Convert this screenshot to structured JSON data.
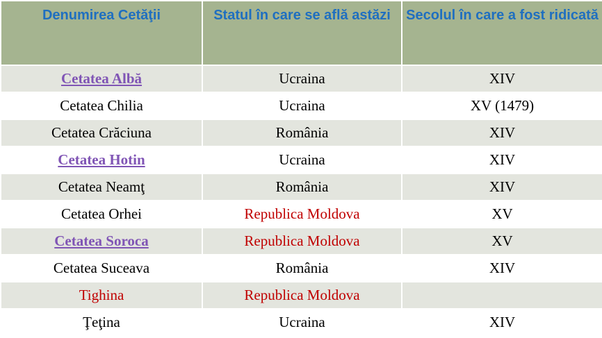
{
  "table": {
    "header": [
      "Denumirea Cetăţii",
      "Statul în care se află astăzi",
      "Secolul în care a fost ridicată"
    ],
    "rows": [
      {
        "cells": [
          {
            "text": "Cetatea Albă",
            "style": "link"
          },
          {
            "text": "Ucraina"
          },
          {
            "text": "XIV"
          }
        ]
      },
      {
        "cells": [
          {
            "text": "Cetatea Chilia"
          },
          {
            "text": "Ucraina"
          },
          {
            "text": "XV (1479)"
          }
        ]
      },
      {
        "cells": [
          {
            "text": "Cetatea Crăciuna"
          },
          {
            "text": "România"
          },
          {
            "text": "XIV"
          }
        ]
      },
      {
        "cells": [
          {
            "text": "Cetatea Hotin",
            "style": "link"
          },
          {
            "text": "Ucraina"
          },
          {
            "text": "XIV"
          }
        ]
      },
      {
        "cells": [
          {
            "text": "Cetatea Neamţ"
          },
          {
            "text": "România"
          },
          {
            "text": "XIV"
          }
        ]
      },
      {
        "cells": [
          {
            "text": "Cetatea Orhei"
          },
          {
            "text": "Republica Moldova",
            "style": "red"
          },
          {
            "text": "XV"
          }
        ]
      },
      {
        "cells": [
          {
            "text": "Cetatea Soroca",
            "style": "link"
          },
          {
            "text": "Republica Moldova",
            "style": "red"
          },
          {
            "text": "XV"
          }
        ]
      },
      {
        "cells": [
          {
            "text": "Cetatea Suceava"
          },
          {
            "text": "România"
          },
          {
            "text": "XIV"
          }
        ]
      },
      {
        "cells": [
          {
            "text": "Tighina",
            "style": "red"
          },
          {
            "text": "Republica Moldova",
            "style": "red"
          }
        ]
      },
      {
        "cells": [
          {
            "text": "Ţeţina"
          },
          {
            "text": "Ucraina"
          },
          {
            "text": "XIV"
          }
        ]
      }
    ]
  }
}
